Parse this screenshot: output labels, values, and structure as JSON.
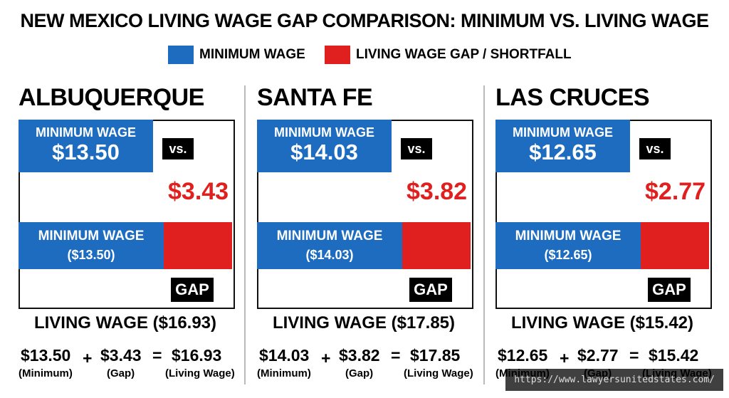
{
  "title": "NEW MEXICO LIVING WAGE GAP COMPARISON: MINIMUM VS. LIVING WAGE",
  "legend": [
    {
      "label": "MINIMUM WAGE",
      "color": "#1d6cc0"
    },
    {
      "label": "LIVING WAGE GAP / SHORTFALL",
      "color": "#e0201f"
    }
  ],
  "panels": [
    {
      "city": "ALBUQUERQUE",
      "top_label": "MINIMUM WAGE",
      "top_value": "$13.50",
      "vs": "vs.",
      "gap_value": "$3.43",
      "bar_label": "MINIMUM WAGE",
      "bar_value": "($13.50)",
      "gap_tag": "GAP",
      "living": "LIVING WAGE ($16.93)",
      "equation": {
        "minimum": "$13.50",
        "plus": "+",
        "gap": "$3.43",
        "equals": "=",
        "living": "$16.93",
        "minimum_note": "(Minimum)",
        "gap_note": "(Gap)",
        "living_note": "(Living Wage)"
      }
    },
    {
      "city": "SANTA FE",
      "top_label": "MINIMUM WAGE",
      "top_value": "$14.03",
      "vs": "vs.",
      "gap_value": "$3.82",
      "bar_label": "MINIMUM WAGE",
      "bar_value": "($14.03)",
      "gap_tag": "GAP",
      "living": "LIVING WAGE ($17.85)",
      "equation": {
        "minimum": "$14.03",
        "plus": "+",
        "gap": "$3.82",
        "equals": "=",
        "living": "$17.85",
        "minimum_note": "(Minimum)",
        "gap_note": "(Gap)",
        "living_note": "(Living Wage)"
      }
    },
    {
      "city": "LAS CRUCES",
      "top_label": "MINIMUM WAGE",
      "top_value": "$12.65",
      "vs": "vs.",
      "gap_value": "$2.77",
      "bar_label": "MINIMUM WAGE",
      "bar_value": "($12.65)",
      "gap_tag": "GAP",
      "living": "LIVING WAGE ($15.42)",
      "equation": {
        "minimum": "$12.65",
        "plus": "+",
        "gap": "$2.77",
        "equals": "=",
        "living": "$15.42",
        "minimum_note": "(Minimum)",
        "gap_note": "(Gap)",
        "living_note": "(Living Wage)"
      }
    }
  ],
  "watermark": "https://www.lawyersunitedstates.com/"
}
